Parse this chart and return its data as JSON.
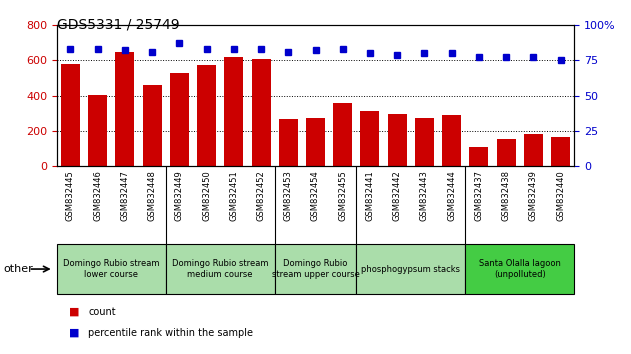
{
  "title": "GDS5331 / 25749",
  "samples": [
    "GSM832445",
    "GSM832446",
    "GSM832447",
    "GSM832448",
    "GSM832449",
    "GSM832450",
    "GSM832451",
    "GSM832452",
    "GSM832453",
    "GSM832454",
    "GSM832455",
    "GSM832441",
    "GSM832442",
    "GSM832443",
    "GSM832444",
    "GSM832437",
    "GSM832438",
    "GSM832439",
    "GSM832440"
  ],
  "counts": [
    580,
    405,
    645,
    462,
    530,
    572,
    618,
    605,
    270,
    275,
    358,
    312,
    295,
    275,
    293,
    112,
    152,
    182,
    168
  ],
  "percentiles": [
    83,
    83,
    82,
    81,
    87,
    83,
    83,
    83,
    81,
    82,
    83,
    80,
    79,
    80,
    80,
    77,
    77,
    77,
    75
  ],
  "bar_color": "#cc0000",
  "dot_color": "#0000cc",
  "ylim_left": [
    0,
    800
  ],
  "ylim_right": [
    0,
    100
  ],
  "yticks_left": [
    0,
    200,
    400,
    600,
    800
  ],
  "yticks_right": [
    0,
    25,
    50,
    75,
    100
  ],
  "groups": [
    {
      "label": "Domingo Rubio stream\nlower course",
      "start": 0,
      "end": 4
    },
    {
      "label": "Domingo Rubio stream\nmedium course",
      "start": 4,
      "end": 8
    },
    {
      "label": "Domingo Rubio\nstream upper course",
      "start": 8,
      "end": 11
    },
    {
      "label": "phosphogypsum stacks",
      "start": 11,
      "end": 15
    },
    {
      "label": "Santa Olalla lagoon\n(unpolluted)",
      "start": 15,
      "end": 19
    }
  ],
  "group_colors": [
    "#aaddaa",
    "#aaddaa",
    "#aaddaa",
    "#aaddaa",
    "#44cc44"
  ],
  "legend_count_label": "count",
  "legend_pct_label": "percentile rank within the sample",
  "other_label": "other",
  "tick_area_color": "#cccccc",
  "plot_bg_color": "#ffffff",
  "title_fontsize": 10,
  "bar_fontsize": 6,
  "group_fontsize": 6,
  "legend_fontsize": 7
}
